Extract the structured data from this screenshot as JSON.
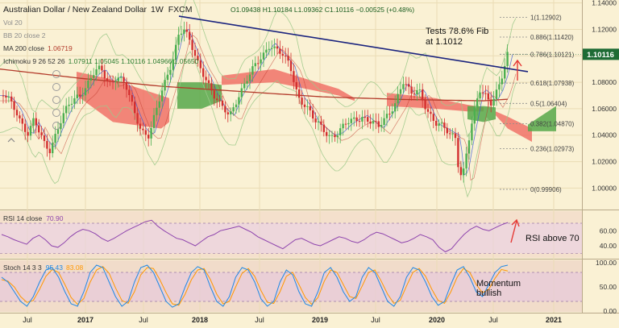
{
  "header": {
    "title": "Australian Dollar / New Zealand Dollar",
    "timeframe": "1W",
    "source": "FXCM",
    "ohlc": "O1.09438 H1.10184 L1.09362 C1.10116 −0.00525 (+0.48%)"
  },
  "indicators": {
    "vol": "Vol 20",
    "bb": "BB 20 close 2",
    "ma": "MA 200 close",
    "ma_value": "1.06719",
    "ichimoku": "Ichimoku 9 26 52 26",
    "ichimoku_values": "1.07911 1.05045 1.10116 1.04966 1.05650"
  },
  "annotations": {
    "fib_test": "Tests 78.6% Fib",
    "fib_test_2": "at 1.1012",
    "rsi_note": "RSI above 70",
    "stoch_note": "Momentum",
    "stoch_note_2": "bullish"
  },
  "rsi_panel": {
    "label": "RSI 14 close",
    "value": "70.90"
  },
  "stoch_panel": {
    "label": "Stoch 14 3 3",
    "k_value": "95.43",
    "d_value": "83.08"
  },
  "colors": {
    "background": "#faf1d4",
    "up": "#4caf50",
    "down": "#d32f2f",
    "trendline": "#1a237e",
    "ma": "#b33a2a",
    "cloud_bull": "#56a84a",
    "cloud_bear": "#f06a60",
    "rsi_line": "#8e44ad",
    "stoch_k": "#1e88e5",
    "stoch_d": "#ff9800",
    "last_price": "#1e6b35"
  },
  "chart_data": [
    {
      "type": "candlestick",
      "title": "Australian Dollar / New Zealand Dollar",
      "y_ticks": [
        "1.14000",
        "1.12000",
        "1.10000",
        "1.08000",
        "1.06000",
        "1.04000",
        "1.02000",
        "1.00000"
      ],
      "x_ticks": [
        "Jul",
        "2017",
        "Jul",
        "2018",
        "Jul",
        "2019",
        "Jul",
        "2020",
        "Jul",
        "2021"
      ],
      "ylim": [
        0.985,
        1.141
      ],
      "last_price": "1.10116",
      "fib_levels": [
        {
          "label": "1(1.12902)",
          "value": 1.12902
        },
        {
          "label": "0.886(1.11420)",
          "value": 1.1142
        },
        {
          "label": "0.786(1.10121)",
          "value": 1.10121
        },
        {
          "label": "0.618(1.07938)",
          "value": 1.07938
        },
        {
          "label": "0.5(1.06404)",
          "value": 1.06404
        },
        {
          "label": "0.382(1.04870)",
          "value": 1.0487
        },
        {
          "label": "0.236(1.02973)",
          "value": 1.02973
        },
        {
          "label": "0(0.99906)",
          "value": 0.99906
        }
      ],
      "price_path": [
        [
          0,
          1.07
        ],
        [
          10,
          1.068
        ],
        [
          20,
          1.06
        ],
        [
          30,
          1.045
        ],
        [
          35,
          1.04
        ],
        [
          42,
          1.05
        ],
        [
          55,
          1.035
        ],
        [
          62,
          1.03
        ],
        [
          72,
          1.045
        ],
        [
          85,
          1.062
        ],
        [
          95,
          1.07
        ],
        [
          105,
          1.075
        ],
        [
          115,
          1.085
        ],
        [
          125,
          1.09
        ],
        [
          135,
          1.08
        ],
        [
          145,
          1.085
        ],
        [
          155,
          1.078
        ],
        [
          165,
          1.06
        ],
        [
          175,
          1.045
        ],
        [
          185,
          1.04
        ],
        [
          195,
          1.06
        ],
        [
          205,
          1.08
        ],
        [
          215,
          1.1
        ],
        [
          222,
          1.118
        ],
        [
          228,
          1.12
        ],
        [
          235,
          1.11
        ],
        [
          245,
          1.095
        ],
        [
          255,
          1.085
        ],
        [
          265,
          1.07
        ],
        [
          275,
          1.06
        ],
        [
          285,
          1.055
        ],
        [
          295,
          1.07
        ],
        [
          305,
          1.08
        ],
        [
          315,
          1.09
        ],
        [
          325,
          1.1
        ],
        [
          335,
          1.11
        ],
        [
          342,
          1.105
        ],
        [
          350,
          1.1
        ],
        [
          360,
          1.092
        ],
        [
          370,
          1.07
        ],
        [
          380,
          1.062
        ],
        [
          390,
          1.05
        ],
        [
          400,
          1.045
        ],
        [
          410,
          1.04
        ],
        [
          420,
          1.042
        ],
        [
          430,
          1.048
        ],
        [
          440,
          1.052
        ],
        [
          450,
          1.055
        ],
        [
          460,
          1.05
        ],
        [
          470,
          1.045
        ],
        [
          480,
          1.055
        ],
        [
          490,
          1.065
        ],
        [
          500,
          1.08
        ],
        [
          510,
          1.07
        ],
        [
          520,
          1.075
        ],
        [
          530,
          1.06
        ],
        [
          540,
          1.048
        ],
        [
          550,
          1.045
        ],
        [
          558,
          1.042
        ],
        [
          565,
          1.04
        ],
        [
          570,
          1.01
        ],
        [
          575,
          1.012
        ],
        [
          580,
          1.03
        ],
        [
          588,
          1.055
        ],
        [
          595,
          1.075
        ],
        [
          602,
          1.072
        ],
        [
          610,
          1.065
        ],
        [
          618,
          1.074
        ],
        [
          624,
          1.085
        ],
        [
          630,
          1.101
        ]
      ],
      "trendline": [
        [
          222,
          1.13
        ],
        [
          655,
          1.088
        ]
      ],
      "ma200_path": [
        [
          0,
          1.09
        ],
        [
          100,
          1.083
        ],
        [
          200,
          1.077
        ],
        [
          300,
          1.073
        ],
        [
          400,
          1.069
        ],
        [
          500,
          1.067
        ],
        [
          600,
          1.066
        ],
        [
          630,
          1.0672
        ]
      ],
      "cloud_segments": [
        {
          "color": "bear",
          "x": [
            95,
            140,
            200,
            210
          ],
          "upper": [
            1.088,
            1.082,
            1.07,
            1.068
          ],
          "lower": [
            1.07,
            1.05,
            1.045,
            1.05
          ]
        },
        {
          "color": "bull",
          "x": [
            220,
            250,
            275
          ],
          "upper": [
            1.08,
            1.08,
            1.078
          ],
          "lower": [
            1.06,
            1.06,
            1.066
          ]
        },
        {
          "color": "bear",
          "x": [
            275,
            340,
            420,
            440
          ],
          "upper": [
            1.085,
            1.09,
            1.075,
            1.068
          ],
          "lower": [
            1.078,
            1.08,
            1.07,
            1.066
          ]
        },
        {
          "color": "bear",
          "x": [
            480,
            540,
            580,
            600
          ],
          "upper": [
            1.072,
            1.068,
            1.063,
            1.061
          ],
          "lower": [
            1.062,
            1.06,
            1.058,
            1.058
          ]
        },
        {
          "color": "bull",
          "x": [
            580,
            600,
            615
          ],
          "upper": [
            1.062,
            1.062,
            1.061
          ],
          "lower": [
            1.052,
            1.05,
            1.052
          ]
        },
        {
          "color": "bear",
          "x": [
            615,
            630,
            660
          ],
          "upper": [
            1.058,
            1.054,
            1.045
          ],
          "lower": [
            1.055,
            1.045,
            1.035
          ]
        },
        {
          "color": "bull",
          "x": [
            655,
            690
          ],
          "upper": [
            1.048,
            1.062
          ],
          "lower": [
            1.043,
            1.043
          ]
        }
      ]
    },
    {
      "type": "line",
      "title": "RSI 14 close",
      "y_ticks": [
        "60.00",
        "40.00"
      ],
      "ylim": [
        25,
        85
      ],
      "levels": [
        70,
        30
      ],
      "values": [
        55,
        52,
        48,
        45,
        42,
        50,
        54,
        48,
        40,
        38,
        44,
        52,
        58,
        62,
        60,
        56,
        50,
        46,
        50,
        55,
        60,
        64,
        68,
        72,
        74,
        66,
        60,
        55,
        50,
        48,
        44,
        40,
        46,
        52,
        55,
        60,
        62,
        64,
        66,
        62,
        58,
        52,
        48,
        44,
        40,
        36,
        42,
        48,
        50,
        46,
        42,
        40,
        44,
        48,
        52,
        50,
        46,
        44,
        48,
        54,
        58,
        56,
        52,
        48,
        44,
        46,
        50,
        55,
        52,
        48,
        38,
        32,
        36,
        46,
        55,
        62,
        66,
        62,
        60,
        64,
        68,
        71
      ]
    },
    {
      "type": "line",
      "title": "Stoch 14 3 3",
      "y_ticks": [
        "100.00",
        "50.00",
        "0.00"
      ],
      "ylim": [
        0,
        100
      ],
      "levels": [
        80,
        20
      ],
      "k_values": [
        70,
        60,
        40,
        20,
        10,
        30,
        60,
        85,
        90,
        70,
        40,
        15,
        10,
        40,
        80,
        95,
        90,
        60,
        30,
        10,
        20,
        60,
        90,
        95,
        80,
        50,
        20,
        8,
        15,
        50,
        80,
        92,
        85,
        50,
        20,
        10,
        30,
        70,
        90,
        85,
        60,
        25,
        10,
        20,
        60,
        85,
        75,
        40,
        15,
        10,
        40,
        80,
        90,
        70,
        40,
        20,
        30,
        70,
        90,
        80,
        50,
        20,
        10,
        30,
        70,
        90,
        85,
        60,
        30,
        12,
        20,
        55,
        85,
        92,
        70,
        40,
        30,
        55,
        80,
        92,
        95
      ],
      "d_values": [
        65,
        62,
        50,
        30,
        18,
        22,
        45,
        72,
        86,
        80,
        55,
        28,
        14,
        26,
        60,
        85,
        92,
        78,
        48,
        22,
        16,
        40,
        75,
        90,
        88,
        65,
        38,
        15,
        12,
        35,
        65,
        85,
        88,
        65,
        35,
        15,
        20,
        50,
        78,
        88,
        72,
        42,
        18,
        16,
        40,
        72,
        80,
        55,
        28,
        14,
        28,
        62,
        85,
        80,
        55,
        30,
        26,
        52,
        80,
        85,
        62,
        35,
        16,
        22,
        52,
        80,
        88,
        72,
        45,
        22,
        16,
        40,
        70,
        88,
        80,
        55,
        38,
        45,
        68,
        86,
        83
      ]
    }
  ]
}
